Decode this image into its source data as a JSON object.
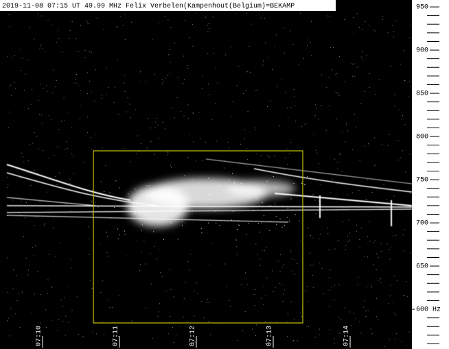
{
  "chart_data": {
    "type": "spectrogram",
    "title": "2019-11-08 07:15 UT 49.99 MHz Felix Verbelen(Kampenhout(Belgium)=BEKAMP",
    "xticks": [
      "07:10",
      "07:11",
      "07:12",
      "07:13",
      "07:14"
    ],
    "ylim": [
      554,
      958
    ],
    "yticks": [
      950,
      900,
      850,
      800,
      750,
      700,
      650,
      {
        "value": 600,
        "label": "600 Hz"
      }
    ],
    "yminorticks": [
      560,
      570,
      580,
      590,
      610,
      620,
      630,
      640,
      660,
      670,
      680,
      690,
      710,
      720,
      730,
      740,
      760,
      770,
      780,
      790,
      810,
      820,
      830,
      840,
      860,
      870,
      880,
      890,
      910,
      920,
      930,
      940
    ],
    "color": "#000000"
  }
}
